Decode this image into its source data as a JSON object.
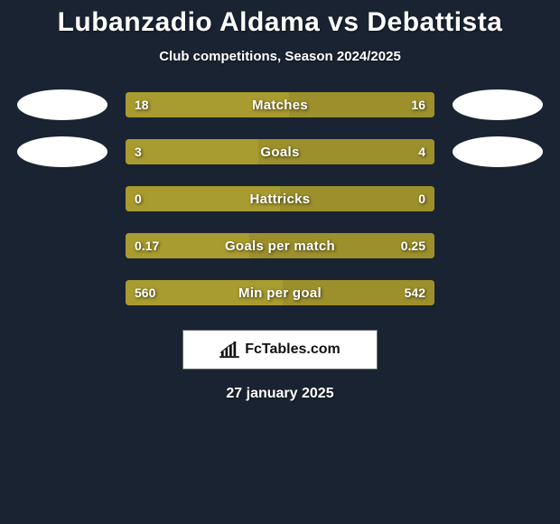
{
  "title": "Lubanzadio Aldama vs Debattista",
  "subtitle": "Club competitions, Season 2024/2025",
  "date": "27 january 2025",
  "logo_text": "FcTables.com",
  "colors": {
    "left_bar": "#a89b2f",
    "right_bar": "#9c902c",
    "track": "#a89b2f",
    "avatar": "#ffffff",
    "bg": "#1a2332"
  },
  "stats": [
    {
      "label": "Matches",
      "left_val": "18",
      "right_val": "16",
      "left_pct": 53,
      "right_pct": 47,
      "show_avatars": true
    },
    {
      "label": "Goals",
      "left_val": "3",
      "right_val": "4",
      "left_pct": 43,
      "right_pct": 57,
      "show_avatars": true
    },
    {
      "label": "Hattricks",
      "left_val": "0",
      "right_val": "0",
      "left_pct": 50,
      "right_pct": 50,
      "show_avatars": false
    },
    {
      "label": "Goals per match",
      "left_val": "0.17",
      "right_val": "0.25",
      "left_pct": 40,
      "right_pct": 60,
      "show_avatars": false
    },
    {
      "label": "Min per goal",
      "left_val": "560",
      "right_val": "542",
      "left_pct": 51,
      "right_pct": 49,
      "show_avatars": false
    }
  ]
}
